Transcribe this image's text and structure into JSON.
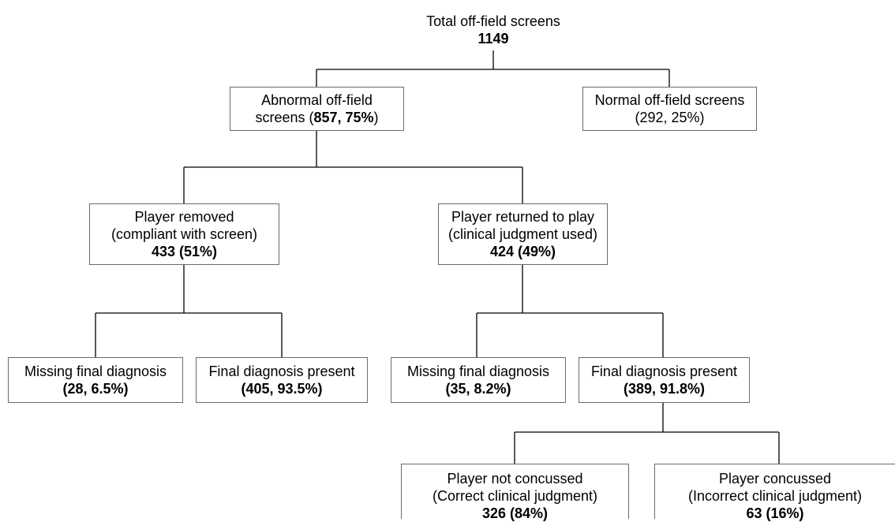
{
  "root": {
    "label": "Total off-field screens",
    "count": "1149"
  },
  "abnormal": {
    "label_line1": "Abnormal off-field",
    "label_line2_prefix": "screens (",
    "label_line2_value": "857, 75%",
    "label_line2_suffix": ")"
  },
  "normal": {
    "label_line1": "Normal off-field screens",
    "label_line2": "(292, 25%)"
  },
  "removed": {
    "line1": "Player removed",
    "line2": "(compliant with screen)",
    "value": "433 (51%)"
  },
  "returned": {
    "line1": "Player returned to play",
    "line2": "(clinical judgment used)",
    "value": "424 (49%)"
  },
  "removed_missing": {
    "label": "Missing final diagnosis",
    "value": "(28, 6.5%)"
  },
  "removed_present": {
    "label": "Final diagnosis present",
    "value": "(405, 93.5%)"
  },
  "returned_missing": {
    "label": "Missing final diagnosis",
    "value": "(35, 8.2%)"
  },
  "returned_present": {
    "label": "Final diagnosis present",
    "value": "(389, 91.8%)"
  },
  "not_concussed": {
    "line1": "Player not concussed",
    "line2": "(Correct clinical judgment)",
    "value": "326 (84%)"
  },
  "concussed": {
    "line1": "Player concussed",
    "line2": "(Incorrect clinical judgment)",
    "value": "63 (16%)"
  }
}
